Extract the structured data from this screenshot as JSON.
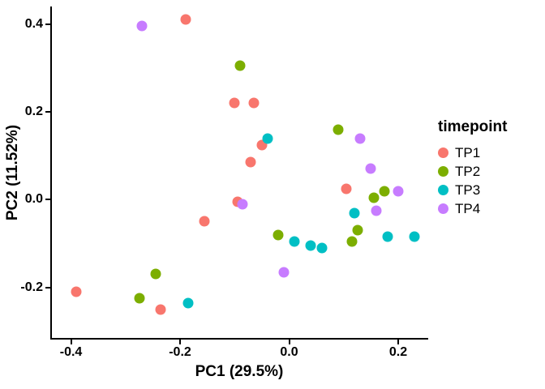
{
  "chart_data": {
    "type": "scatter",
    "title": "",
    "xlabel": "PC1 (29.5%)",
    "ylabel": "PC2 (11.52%)",
    "xlim": [
      -0.435,
      0.255
    ],
    "ylim": [
      -0.315,
      0.44
    ],
    "grid": false,
    "legend_title": "timepoint",
    "legend_position": "right",
    "axis_color": "#000000",
    "x_ticks": [
      {
        "value": -0.4,
        "label": "-0.4"
      },
      {
        "value": -0.2,
        "label": "-0.2"
      },
      {
        "value": 0.0,
        "label": "0.0"
      },
      {
        "value": 0.2,
        "label": "0.2"
      }
    ],
    "y_ticks": [
      {
        "value": -0.2,
        "label": "-0.2"
      },
      {
        "value": 0.0,
        "label": "0.0"
      },
      {
        "value": 0.2,
        "label": "0.2"
      },
      {
        "value": 0.4,
        "label": "0.4"
      }
    ],
    "series": [
      {
        "name": "TP1",
        "color": "#F8766D",
        "points": [
          [
            -0.39,
            -0.21
          ],
          [
            -0.235,
            -0.25
          ],
          [
            -0.19,
            0.41
          ],
          [
            -0.155,
            -0.05
          ],
          [
            -0.1,
            0.22
          ],
          [
            -0.065,
            0.22
          ],
          [
            -0.07,
            0.085
          ],
          [
            -0.05,
            0.125
          ],
          [
            -0.095,
            -0.005
          ],
          [
            0.105,
            0.025
          ]
        ]
      },
      {
        "name": "TP2",
        "color": "#7CAE00",
        "points": [
          [
            -0.275,
            -0.225
          ],
          [
            -0.245,
            -0.17
          ],
          [
            -0.09,
            0.305
          ],
          [
            -0.02,
            -0.08
          ],
          [
            0.09,
            0.16
          ],
          [
            0.115,
            -0.095
          ],
          [
            0.125,
            -0.07
          ],
          [
            0.155,
            0.005
          ],
          [
            0.175,
            0.02
          ]
        ]
      },
      {
        "name": "TP3",
        "color": "#00BFC4",
        "points": [
          [
            -0.185,
            -0.235
          ],
          [
            -0.04,
            0.14
          ],
          [
            0.01,
            -0.095
          ],
          [
            0.04,
            -0.105
          ],
          [
            0.06,
            -0.11
          ],
          [
            0.12,
            -0.03
          ],
          [
            0.18,
            -0.085
          ],
          [
            0.23,
            -0.085
          ]
        ]
      },
      {
        "name": "TP4",
        "color": "#C77CFF",
        "points": [
          [
            -0.27,
            0.395
          ],
          [
            -0.085,
            -0.01
          ],
          [
            -0.01,
            -0.165
          ],
          [
            0.13,
            0.14
          ],
          [
            0.15,
            0.07
          ],
          [
            0.16,
            -0.025
          ],
          [
            0.2,
            0.02
          ]
        ]
      }
    ]
  }
}
